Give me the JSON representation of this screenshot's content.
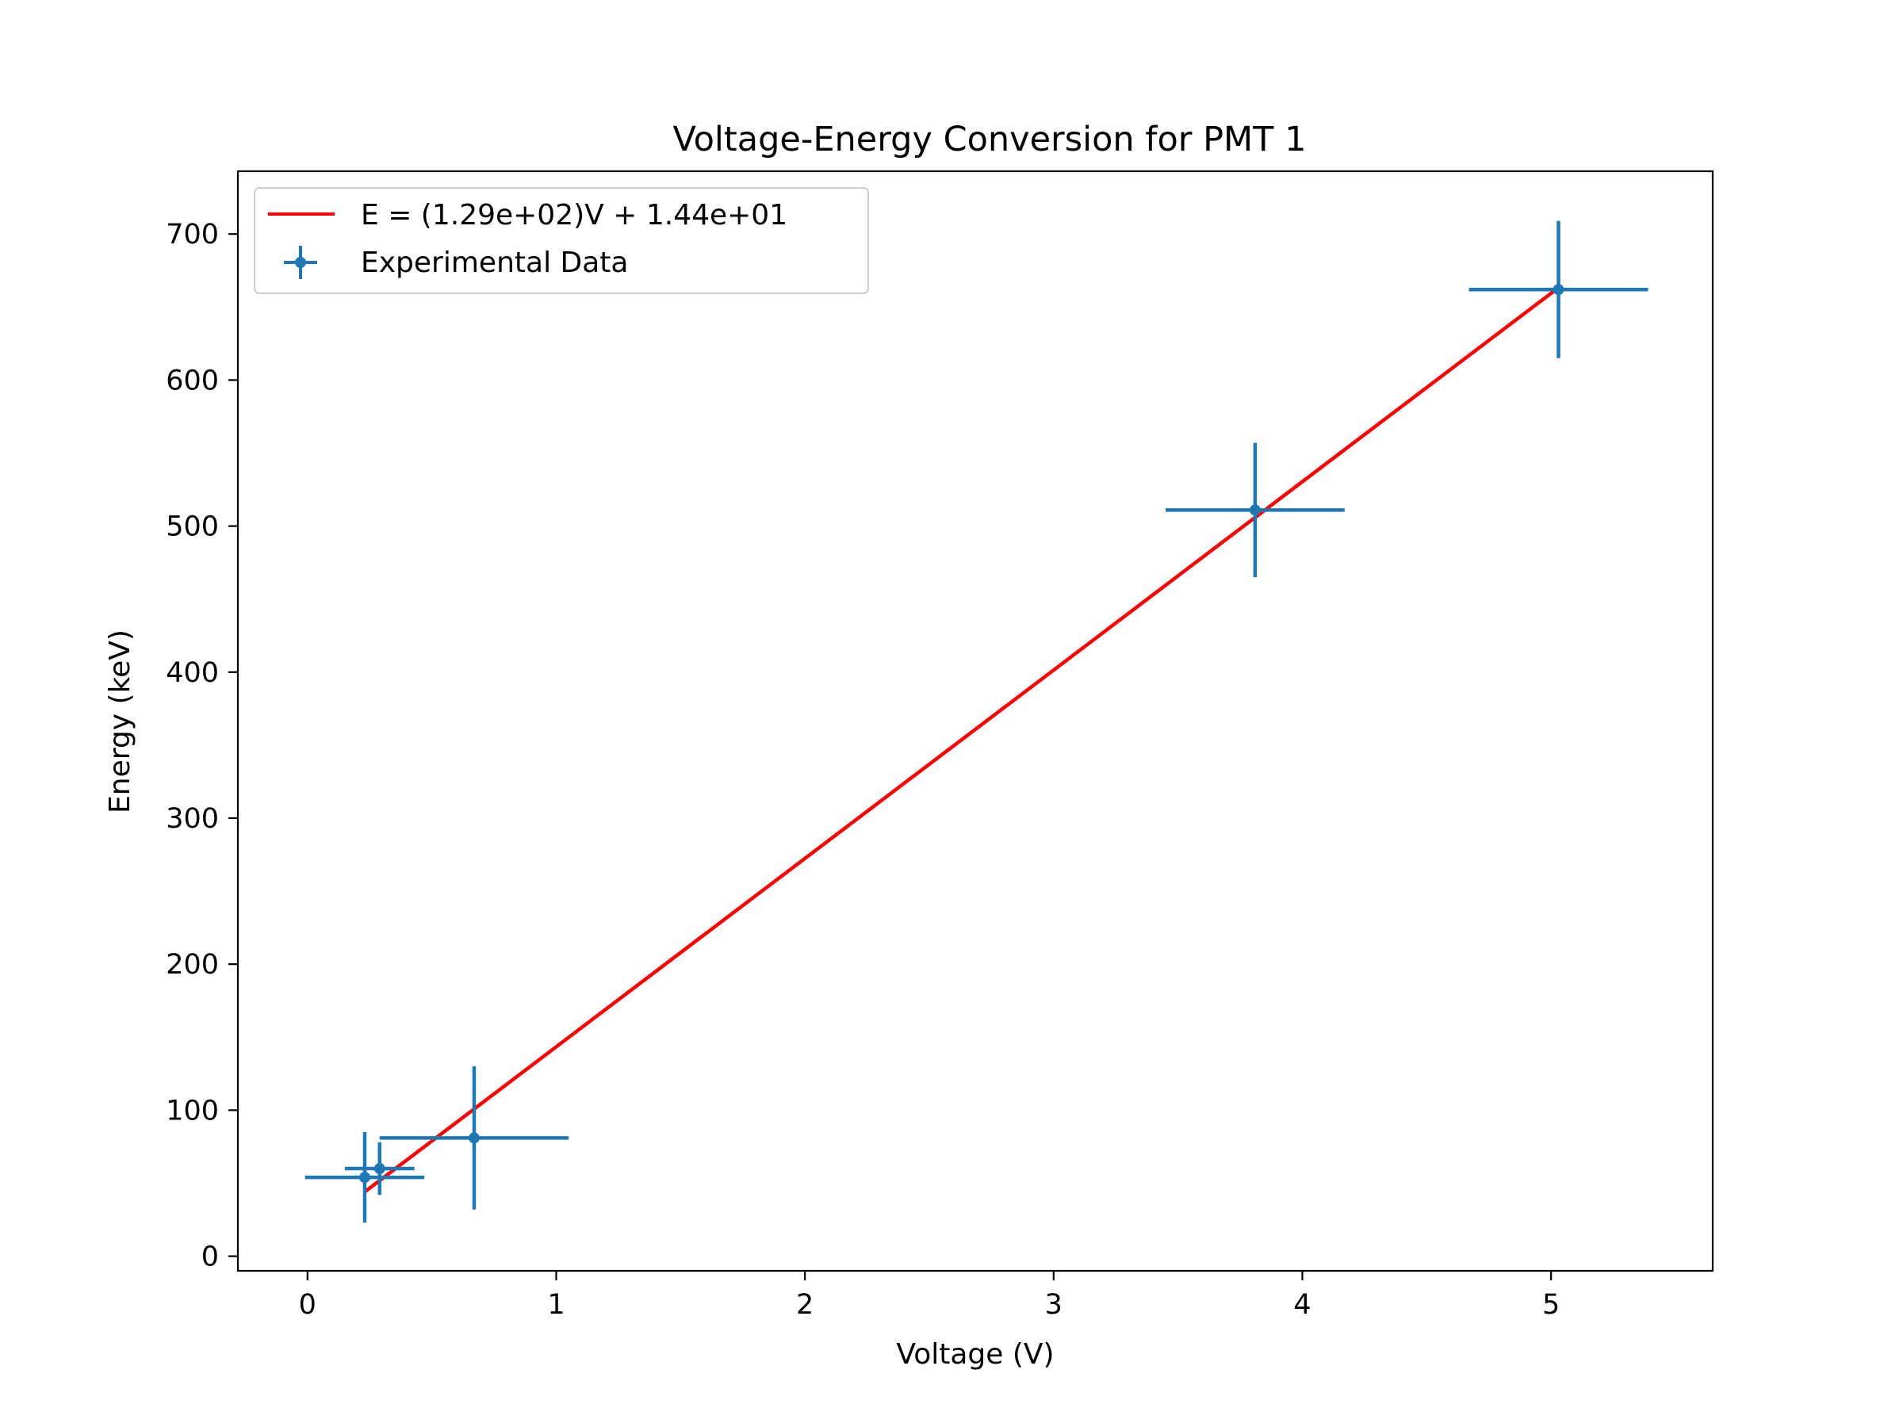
{
  "chart_data": {
    "type": "scatter",
    "title": "Voltage-Energy Conversion for PMT 1",
    "xlabel": "Voltage (V)",
    "ylabel": "Energy (keV)",
    "xlim": [
      -0.28,
      5.65
    ],
    "ylim": [
      -10,
      743
    ],
    "xticks": [
      0,
      1,
      2,
      3,
      4,
      5
    ],
    "yticks": [
      0,
      100,
      200,
      300,
      400,
      500,
      600,
      700
    ],
    "grid": false,
    "legend_position": "top-left",
    "series": [
      {
        "name": "Experimental Data",
        "kind": "errorbar",
        "color": "#1f77b4",
        "points": [
          {
            "x": 0.23,
            "y": 54,
            "xerr": 0.24,
            "yerr": 31
          },
          {
            "x": 0.29,
            "y": 60,
            "xerr": 0.14,
            "yerr": 18
          },
          {
            "x": 0.67,
            "y": 81,
            "xerr": 0.38,
            "yerr": 49
          },
          {
            "x": 3.81,
            "y": 511,
            "xerr": 0.36,
            "yerr": 46
          },
          {
            "x": 5.03,
            "y": 662,
            "xerr": 0.36,
            "yerr": 47
          }
        ]
      },
      {
        "name": "E = (1.29e+02)V + 1.44e+01",
        "kind": "line",
        "color": "#ff0000",
        "slope": 129,
        "intercept": 14.4,
        "x_range": [
          0.23,
          5.03
        ]
      }
    ]
  }
}
